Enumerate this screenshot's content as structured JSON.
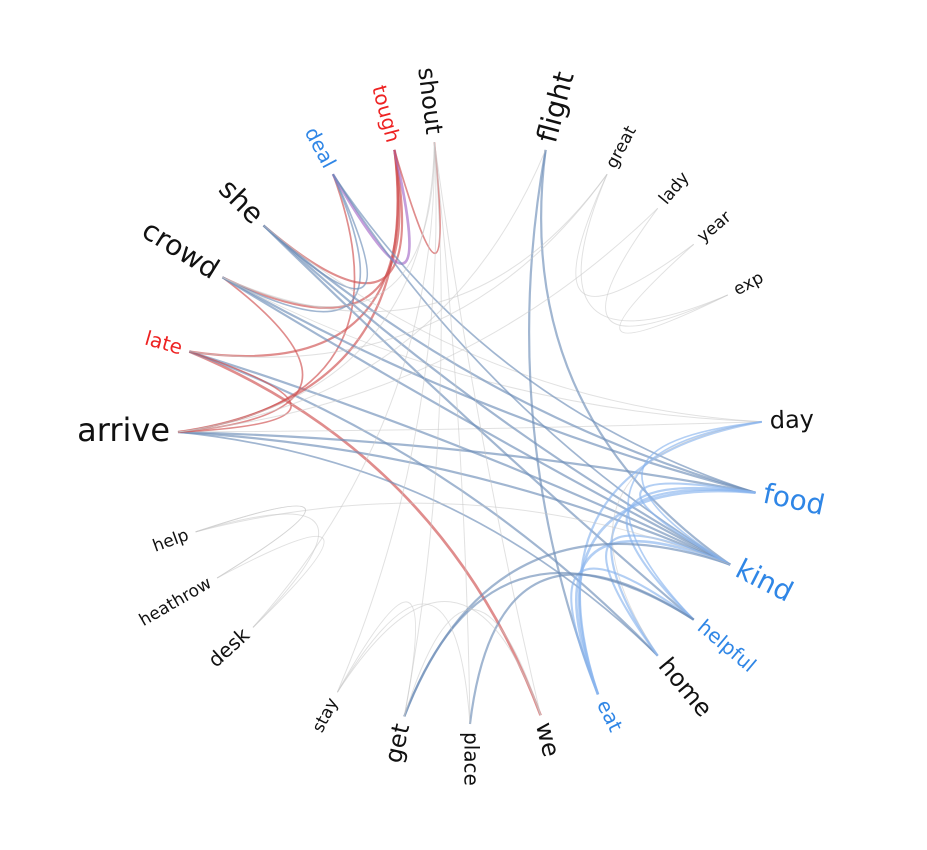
{
  "colors": {
    "black": "#111111",
    "blue": "#2f86e6",
    "red": "#ee2222",
    "link_blue": "#6f8fb8",
    "link_lightblue": "#8ab6ee",
    "link_red": "#d05050",
    "link_purple": "#a46ac8",
    "link_gray": "#c8c8c8"
  },
  "nodes": [
    {
      "id": "arrive",
      "label": "arrive",
      "color": "black",
      "weight": 5
    },
    {
      "id": "late",
      "label": "late",
      "color": "red",
      "weight": 2
    },
    {
      "id": "crowd",
      "label": "crowd",
      "color": "black",
      "weight": 4
    },
    {
      "id": "she",
      "label": "she",
      "color": "black",
      "weight": 4
    },
    {
      "id": "deal",
      "label": "deal",
      "color": "blue",
      "weight": 2
    },
    {
      "id": "tough",
      "label": "tough",
      "color": "red",
      "weight": 2
    },
    {
      "id": "shout",
      "label": "shout",
      "color": "black",
      "weight": 3
    },
    {
      "id": "flight",
      "label": "flight",
      "color": "black",
      "weight": 4
    },
    {
      "id": "great",
      "label": "great",
      "color": "black",
      "weight": 1
    },
    {
      "id": "lady",
      "label": "lady",
      "color": "black",
      "weight": 1
    },
    {
      "id": "year",
      "label": "year",
      "color": "black",
      "weight": 1
    },
    {
      "id": "exp",
      "label": "exp",
      "color": "black",
      "weight": 1
    },
    {
      "id": "day",
      "label": "day",
      "color": "black",
      "weight": 3
    },
    {
      "id": "food",
      "label": "food",
      "color": "blue",
      "weight": 4
    },
    {
      "id": "kind",
      "label": "kind",
      "color": "blue",
      "weight": 4
    },
    {
      "id": "helpful",
      "label": "helpful",
      "color": "blue",
      "weight": 2
    },
    {
      "id": "home",
      "label": "home",
      "color": "black",
      "weight": 3
    },
    {
      "id": "eat",
      "label": "eat",
      "color": "blue",
      "weight": 2
    },
    {
      "id": "we",
      "label": "we",
      "color": "black",
      "weight": 3
    },
    {
      "id": "place",
      "label": "place",
      "color": "black",
      "weight": 2
    },
    {
      "id": "get",
      "label": "get",
      "color": "black",
      "weight": 3
    },
    {
      "id": "stay",
      "label": "stay",
      "color": "black",
      "weight": 1
    },
    {
      "id": "desk",
      "label": "desk",
      "color": "black",
      "weight": 2
    },
    {
      "id": "heathrow",
      "label": "heathrow",
      "color": "black",
      "weight": 1
    },
    {
      "id": "help",
      "label": "help",
      "color": "black",
      "weight": 1
    }
  ],
  "links": [
    {
      "source": "late",
      "target": "we",
      "color": "link_red",
      "strength": 3
    },
    {
      "source": "late",
      "target": "tough",
      "color": "link_red",
      "strength": 2
    },
    {
      "source": "late",
      "target": "home",
      "color": "link_blue",
      "strength": 2
    },
    {
      "source": "late",
      "target": "kind",
      "color": "link_blue",
      "strength": 2
    },
    {
      "source": "arrive",
      "target": "tough",
      "color": "link_red",
      "strength": 2
    },
    {
      "source": "arrive",
      "target": "deal",
      "color": "link_red",
      "strength": 1
    },
    {
      "source": "arrive",
      "target": "food",
      "color": "link_blue",
      "strength": 2
    },
    {
      "source": "arrive",
      "target": "kind",
      "color": "link_blue",
      "strength": 2
    },
    {
      "source": "arrive",
      "target": "day",
      "color": "link_gray",
      "strength": 1
    },
    {
      "source": "arrive",
      "target": "home",
      "color": "link_blue",
      "strength": 1
    },
    {
      "source": "arrive",
      "target": "late",
      "color": "link_red",
      "strength": 1
    },
    {
      "source": "arrive",
      "target": "crowd",
      "color": "link_red",
      "strength": 1
    },
    {
      "source": "crowd",
      "target": "tough",
      "color": "link_red",
      "strength": 2
    },
    {
      "source": "crowd",
      "target": "deal",
      "color": "link_blue",
      "strength": 1
    },
    {
      "source": "crowd",
      "target": "food",
      "color": "link_blue",
      "strength": 2
    },
    {
      "source": "crowd",
      "target": "kind",
      "color": "link_blue",
      "strength": 2
    },
    {
      "source": "crowd",
      "target": "day",
      "color": "link_gray",
      "strength": 1
    },
    {
      "source": "she",
      "target": "tough",
      "color": "link_red",
      "strength": 2
    },
    {
      "source": "she",
      "target": "deal",
      "color": "link_blue",
      "strength": 1
    },
    {
      "source": "she",
      "target": "food",
      "color": "link_blue",
      "strength": 2
    },
    {
      "source": "she",
      "target": "kind",
      "color": "link_blue",
      "strength": 2
    },
    {
      "source": "she",
      "target": "helpful",
      "color": "link_blue",
      "strength": 2
    },
    {
      "source": "she",
      "target": "day",
      "color": "link_gray",
      "strength": 1
    },
    {
      "source": "deal",
      "target": "tough",
      "color": "link_purple",
      "strength": 3
    },
    {
      "source": "deal",
      "target": "food",
      "color": "link_blue",
      "strength": 1
    },
    {
      "source": "deal",
      "target": "kind",
      "color": "link_blue",
      "strength": 1
    },
    {
      "source": "tough",
      "target": "shout",
      "color": "link_red",
      "strength": 1
    },
    {
      "source": "shout",
      "target": "we",
      "color": "link_gray",
      "strength": 1
    },
    {
      "source": "shout",
      "target": "arrive",
      "color": "link_gray",
      "strength": 1
    },
    {
      "source": "shout",
      "target": "place",
      "color": "link_gray",
      "strength": 1
    },
    {
      "source": "shout",
      "target": "get",
      "color": "link_gray",
      "strength": 1
    },
    {
      "source": "flight",
      "target": "eat",
      "color": "link_blue",
      "strength": 2
    },
    {
      "source": "flight",
      "target": "kind",
      "color": "link_blue",
      "strength": 2
    },
    {
      "source": "flight",
      "target": "arrive",
      "color": "link_gray",
      "strength": 1
    },
    {
      "source": "great",
      "target": "exp",
      "color": "link_gray",
      "strength": 1
    },
    {
      "source": "great",
      "target": "late",
      "color": "link_gray",
      "strength": 1
    },
    {
      "source": "great",
      "target": "crowd",
      "color": "link_gray",
      "strength": 1
    },
    {
      "source": "lady",
      "target": "exp",
      "color": "link_gray",
      "strength": 1
    },
    {
      "source": "lady",
      "target": "arrive",
      "color": "link_gray",
      "strength": 1
    },
    {
      "source": "year",
      "target": "exp",
      "color": "link_gray",
      "strength": 1
    },
    {
      "source": "year",
      "target": "great",
      "color": "link_gray",
      "strength": 1
    },
    {
      "source": "eat",
      "target": "day",
      "color": "link_lightblue",
      "strength": 2
    },
    {
      "source": "eat",
      "target": "food",
      "color": "link_lightblue",
      "strength": 3
    },
    {
      "source": "eat",
      "target": "kind",
      "color": "link_lightblue",
      "strength": 3
    },
    {
      "source": "eat",
      "target": "helpful",
      "color": "link_lightblue",
      "strength": 2
    },
    {
      "source": "home",
      "target": "food",
      "color": "link_lightblue",
      "strength": 2
    },
    {
      "source": "home",
      "target": "day",
      "color": "link_gray",
      "strength": 1
    },
    {
      "source": "home",
      "target": "kind",
      "color": "link_lightblue",
      "strength": 2
    },
    {
      "source": "helpful",
      "target": "food",
      "color": "link_lightblue",
      "strength": 2
    },
    {
      "source": "helpful",
      "target": "day",
      "color": "link_lightblue",
      "strength": 1
    },
    {
      "source": "kind",
      "target": "food",
      "color": "link_lightblue",
      "strength": 2
    },
    {
      "source": "kind",
      "target": "day",
      "color": "link_lightblue",
      "strength": 1
    },
    {
      "source": "get",
      "target": "kind",
      "color": "link_blue",
      "strength": 2
    },
    {
      "source": "get",
      "target": "helpful",
      "color": "link_blue",
      "strength": 2
    },
    {
      "source": "place",
      "target": "helpful",
      "color": "link_blue",
      "strength": 2
    },
    {
      "source": "place",
      "target": "stay",
      "color": "link_gray",
      "strength": 1
    },
    {
      "source": "we",
      "target": "stay",
      "color": "link_gray",
      "strength": 1
    },
    {
      "source": "we",
      "target": "get",
      "color": "link_gray",
      "strength": 1
    },
    {
      "source": "get",
      "target": "stay",
      "color": "link_gray",
      "strength": 1
    },
    {
      "source": "desk",
      "target": "help",
      "color": "link_gray",
      "strength": 1
    },
    {
      "source": "desk",
      "target": "heathrow",
      "color": "link_gray",
      "strength": 1
    },
    {
      "source": "desk",
      "target": "shout",
      "color": "link_gray",
      "strength": 1
    },
    {
      "source": "help",
      "target": "heathrow",
      "color": "link_gray",
      "strength": 1
    },
    {
      "source": "help",
      "target": "kind",
      "color": "link_gray",
      "strength": 1
    },
    {
      "source": "heathrow",
      "target": "help",
      "color": "link_gray",
      "strength": 1
    },
    {
      "source": "shout",
      "target": "crowd",
      "color": "link_gray",
      "strength": 1
    },
    {
      "source": "stay",
      "target": "shout",
      "color": "link_gray",
      "strength": 1
    }
  ]
}
